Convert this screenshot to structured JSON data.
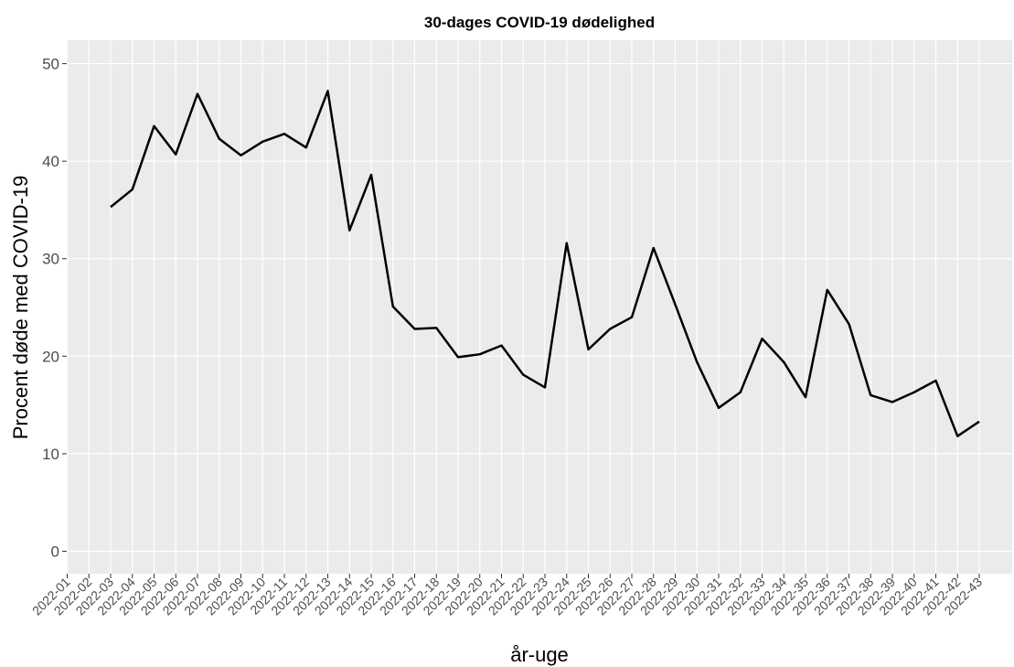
{
  "chart_data": {
    "type": "line",
    "title": "30-dages COVID-19 dødelighed",
    "x_label": "år-uge",
    "y_label": "Procent døde med COVID-19",
    "categories": [
      "2022-01",
      "2022-02",
      "2022-03",
      "2022-04",
      "2022-05",
      "2022-06",
      "2022-07",
      "2022-08",
      "2022-09",
      "2022-10",
      "2022-11",
      "2022-12",
      "2022-13",
      "2022-14",
      "2022-15",
      "2022-16",
      "2022-17",
      "2022-18",
      "2022-19",
      "2022-20",
      "2022-21",
      "2022-22",
      "2022-23",
      "2022-24",
      "2022-25",
      "2022-26",
      "2022-27",
      "2022-28",
      "2022-29",
      "2022-30",
      "2022-31",
      "2022-32",
      "2022-33",
      "2022-34",
      "2022-35",
      "2022-36",
      "2022-37",
      "2022-38",
      "2022-39",
      "2022-40",
      "2022-41",
      "2022-42",
      "2022-43"
    ],
    "values": [
      null,
      null,
      35.3,
      37.1,
      43.6,
      40.7,
      46.9,
      42.3,
      40.6,
      42.0,
      42.8,
      41.4,
      47.2,
      32.9,
      38.6,
      25.1,
      22.8,
      22.9,
      19.9,
      20.2,
      21.1,
      18.1,
      16.8,
      31.6,
      20.7,
      22.8,
      24.0,
      31.1,
      25.3,
      19.4,
      14.7,
      16.3,
      21.8,
      19.4,
      15.8,
      26.8,
      23.3,
      16.0,
      15.3,
      16.3,
      17.5,
      11.8,
      13.3
    ],
    "color": "#000000",
    "ylim": [
      -2.3,
      52.4
    ],
    "yticks": [
      0,
      10,
      20,
      30,
      40,
      50
    ],
    "grid": true
  }
}
